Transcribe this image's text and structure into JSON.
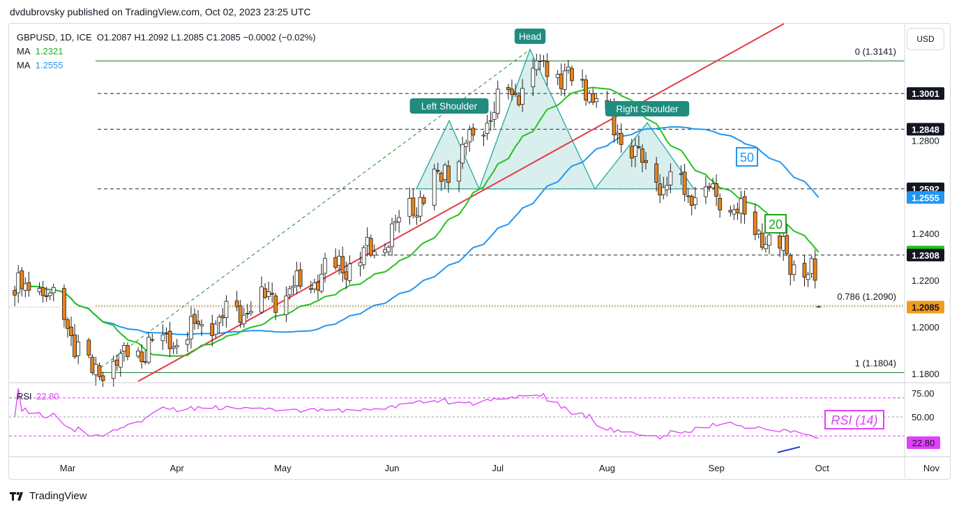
{
  "publisher": "dvdubrovsky published on TradingView.com, Oct 02, 2023 23:25 UTC",
  "brand": "TradingView",
  "currency_button": "USD",
  "legend": {
    "symbol": "GBPUSD, 1D, ICE",
    "ohlc": "O1.2087  H1.2092  L1.2085  C1.2085  −0.0002 (−0.02%)",
    "ma_label": "MA",
    "ma20_value": "1.2321",
    "ma50_value": "1.2555"
  },
  "colors": {
    "up": "#ffffff",
    "down": "#e8831b",
    "ma20": "#22c21e",
    "ma50": "#2196f3",
    "trendline": "#e53945",
    "pattern": "#26a69a",
    "rsi": "#e040fb"
  },
  "chart_data": [
    {
      "type": "candlestick",
      "title": "",
      "y_axis_ticks": [
        "1.1800",
        "1.2000",
        "1.2200",
        "1.2400",
        "1.2800"
      ],
      "x_axis_ticks": [
        "Mar",
        "Apr",
        "May",
        "Jun",
        "Jul",
        "Aug",
        "Sep",
        "Oct",
        "Nov"
      ],
      "price_markers": [
        {
          "label": "1.3001",
          "value": 1.3001,
          "style": "dark"
        },
        {
          "label": "1.2848",
          "value": 1.2848,
          "style": "dark"
        },
        {
          "label": "1.2592",
          "value": 1.2592,
          "style": "dark"
        },
        {
          "label": "1.2555",
          "value": 1.2555,
          "style": "blue"
        },
        {
          "label": "1.2321",
          "value": 1.2321,
          "style": "green"
        },
        {
          "label": "1.2308",
          "value": 1.2308,
          "style": "dark"
        },
        {
          "label": "1.2085",
          "value": 1.2085,
          "style": "orange"
        }
      ],
      "fib_levels": [
        {
          "label": "0 (1.3141)",
          "value": 1.3141
        },
        {
          "label": "0.786 (1.2090)",
          "value": 1.209
        },
        {
          "label": "1 (1.1804)",
          "value": 1.1804
        }
      ],
      "annotations": [
        {
          "text": "Head",
          "date": "2023-07-13",
          "price": 1.3141
        },
        {
          "text": "Left Shoulder",
          "date": "2023-06-16",
          "price": 1.2848
        },
        {
          "text": "Right Shoulder",
          "date": "2023-08-23",
          "price": 1.2848
        }
      ],
      "ma_tags": [
        {
          "text": "50",
          "color": "#2196f3"
        },
        {
          "text": "20",
          "color": "#22a11c"
        }
      ],
      "anchors": [
        {
          "date": "2023-03-08",
          "price": 1.1804
        },
        {
          "date": "2023-05-26",
          "price": 1.2308
        },
        {
          "date": "2023-07-13",
          "price": 1.3141
        },
        {
          "date": "2023-07-27",
          "price": 1.3001
        },
        {
          "date": "2023-08-15",
          "price": 1.262
        },
        {
          "date": "2023-09-01",
          "price": 1.256
        },
        {
          "date": "2023-09-29",
          "price": 1.22
        },
        {
          "date": "2023-10-02",
          "price": 1.2085
        }
      ],
      "ma20_end": 1.2321,
      "ma50_end": 1.2555,
      "last_close": 1.2085
    },
    {
      "type": "line",
      "title": "RSI",
      "series": [
        {
          "name": "RSI (14)",
          "last_value": 22.8
        }
      ],
      "legend_label": "RSI",
      "legend_value": "22.80",
      "y_axis_ticks": [
        "75.00",
        "50.00"
      ],
      "levels": [
        70,
        50,
        30
      ],
      "current_label": "22.80"
    }
  ]
}
